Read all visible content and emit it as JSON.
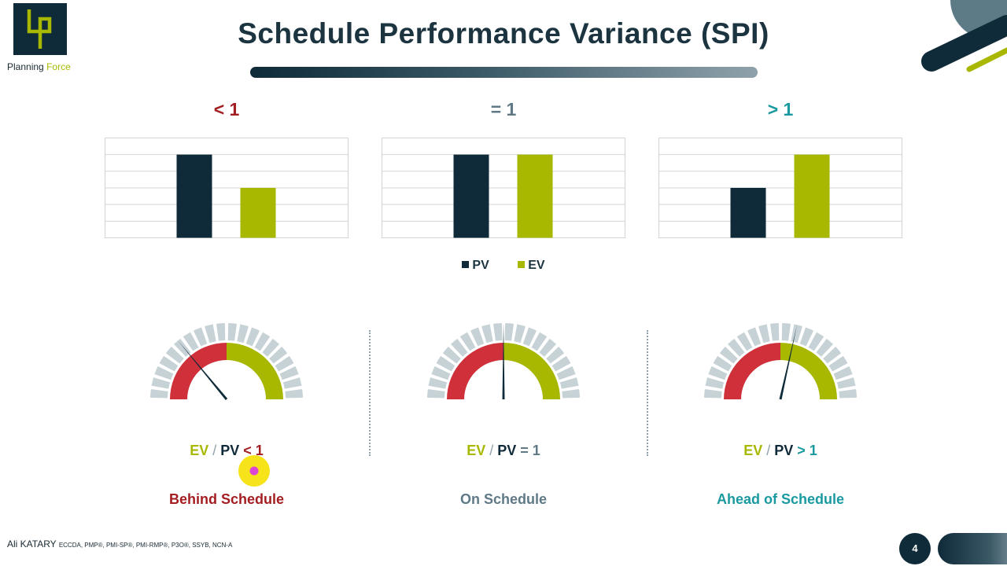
{
  "brand": {
    "logo_word1": "Planning",
    "logo_word2": "Force"
  },
  "title": "Schedule Performance Variance (SPI)",
  "colors": {
    "pv": "#0f2a38",
    "ev": "#a8b800",
    "red": "#a31e22",
    "grey": "#5f7a86",
    "teal": "#1a9aa0"
  },
  "panels": [
    {
      "condition": "< 1",
      "formula": {
        "ev": "EV",
        "slash": "/",
        "pv": "PV",
        "op": "< 1"
      },
      "status": "Behind Schedule",
      "gauge_value": 0.28
    },
    {
      "condition": "= 1",
      "formula": {
        "ev": "EV",
        "slash": "/",
        "pv": "PV",
        "op": "= 1"
      },
      "status": "On Schedule",
      "gauge_value": 0.5
    },
    {
      "condition": "> 1",
      "formula": {
        "ev": "EV",
        "slash": "/",
        "pv": "PV",
        "op": "> 1"
      },
      "status": "Ahead of Schedule",
      "gauge_value": 0.57
    }
  ],
  "chart_data": [
    {
      "type": "bar",
      "categories": [
        "PV",
        "EV"
      ],
      "values": [
        5,
        3
      ],
      "ylim": [
        0,
        6
      ],
      "grid": true
    },
    {
      "type": "bar",
      "categories": [
        "PV",
        "EV"
      ],
      "values": [
        5,
        5
      ],
      "ylim": [
        0,
        6
      ],
      "grid": true
    },
    {
      "type": "bar",
      "categories": [
        "PV",
        "EV"
      ],
      "values": [
        3,
        5
      ],
      "ylim": [
        0,
        6
      ],
      "grid": true
    }
  ],
  "legend": [
    "PV",
    "EV"
  ],
  "footer": {
    "author": "Ali KATARY",
    "credentials": "ECCDA, PMP®, PMI-SP®, PMI-RMP®, P3O®, SSYB, NCN-A",
    "page": "4"
  }
}
